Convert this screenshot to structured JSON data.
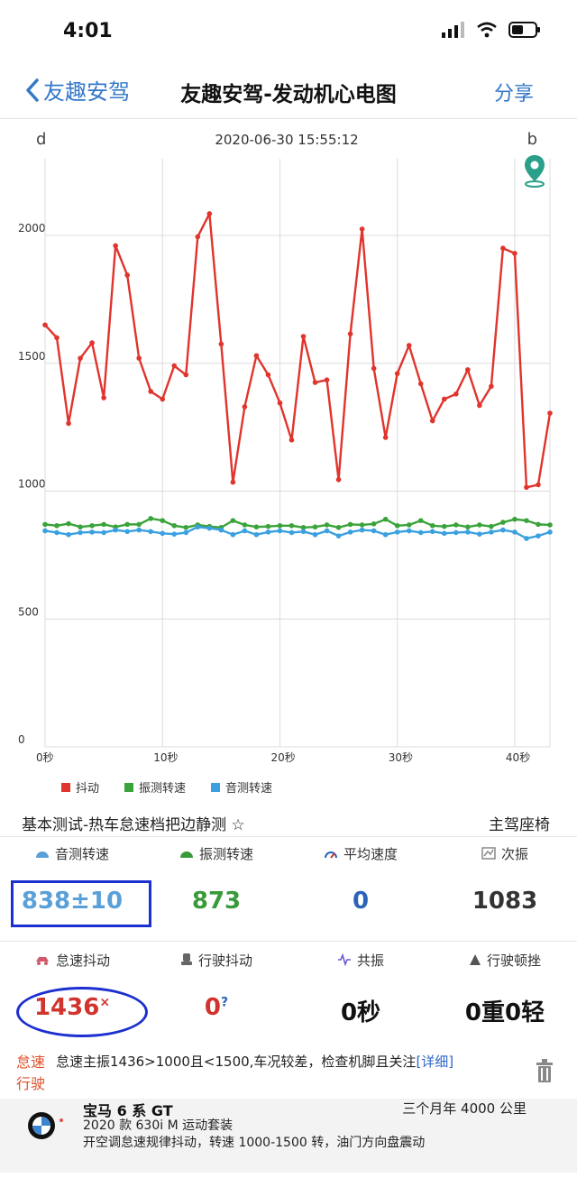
{
  "status": {
    "time": "4:01"
  },
  "nav": {
    "back_label": "友趣安驾",
    "title": "友趣安驾-发动机心电图",
    "share_label": "分享"
  },
  "chart_header": {
    "timestamp": "2020-06-30 15:55:12",
    "left_icon": "d",
    "right_icon": "b"
  },
  "chart_data": {
    "type": "line",
    "x": [
      0,
      1,
      2,
      3,
      4,
      5,
      6,
      7,
      8,
      9,
      10,
      11,
      12,
      13,
      14,
      15,
      16,
      17,
      18,
      19,
      20,
      21,
      22,
      23,
      24,
      25,
      26,
      27,
      28,
      29,
      30,
      31,
      32,
      33,
      34,
      35,
      36,
      37,
      38,
      39,
      40,
      41,
      42,
      43
    ],
    "xlim": [
      0,
      43
    ],
    "ylim": [
      0,
      2300
    ],
    "x_ticks": [
      0,
      10,
      20,
      30,
      40
    ],
    "x_tick_labels": [
      "0秒",
      "10秒",
      "20秒",
      "30秒",
      "40秒"
    ],
    "y_ticks": [
      0,
      500,
      1000,
      1500,
      2000
    ],
    "y_tick_labels": [
      "0",
      "500",
      "1000",
      "1500",
      "2000"
    ],
    "grid": true,
    "legend_position": "bottom-left",
    "series": [
      {
        "name": "抖动",
        "color": "#e0342c",
        "values": [
          1650,
          1600,
          1265,
          1520,
          1580,
          1365,
          1960,
          1845,
          1520,
          1390,
          1360,
          1490,
          1455,
          1995,
          2085,
          1575,
          1035,
          1330,
          1530,
          1455,
          1345,
          1200,
          1605,
          1425,
          1435,
          1045,
          1615,
          2025,
          1480,
          1210,
          1460,
          1570,
          1420,
          1275,
          1360,
          1380,
          1475,
          1335,
          1410,
          1950,
          1930,
          1015,
          1025,
          1305
        ]
      },
      {
        "name": "振测转速",
        "color": "#3aa33a",
        "values": [
          870,
          865,
          873,
          860,
          865,
          870,
          860,
          870,
          870,
          893,
          885,
          865,
          858,
          868,
          862,
          858,
          885,
          868,
          860,
          862,
          865,
          865,
          858,
          860,
          868,
          858,
          870,
          868,
          872,
          890,
          865,
          868,
          885,
          865,
          862,
          868,
          860,
          868,
          862,
          878,
          890,
          885,
          870,
          868
        ]
      },
      {
        "name": "音测转速",
        "color": "#3aa0e0",
        "values": [
          845,
          838,
          830,
          838,
          840,
          838,
          848,
          842,
          848,
          842,
          835,
          832,
          838,
          860,
          855,
          848,
          830,
          845,
          830,
          840,
          845,
          838,
          842,
          830,
          845,
          825,
          840,
          848,
          845,
          830,
          840,
          845,
          838,
          842,
          835,
          838,
          840,
          832,
          840,
          848,
          840,
          815,
          825,
          840
        ]
      }
    ]
  },
  "test_info": {
    "name": "基本测试-热车怠速档把边静测 ☆",
    "position": "主驾座椅"
  },
  "stats_row1": [
    {
      "label": "音测转速",
      "value": "838±10",
      "color": "#5aa0d8",
      "icon": "gauge-icon"
    },
    {
      "label": "振测转速",
      "value": "873",
      "color": "#3a9a3a",
      "icon": "gauge-icon"
    },
    {
      "label": "平均速度",
      "value": "0",
      "color": "#2a63b8",
      "icon": "speed-icon"
    },
    {
      "label": "次振",
      "value": "1083",
      "color": "#333333",
      "icon": "chart-icon"
    }
  ],
  "stats_row2": [
    {
      "label": "怠速抖动",
      "value": "1436",
      "suffix": "×",
      "color": "#d0342c",
      "icon": "car-shake-icon"
    },
    {
      "label": "行驶抖动",
      "value": "0",
      "suffix": "?",
      "color": "#d0342c",
      "icon": "seat-icon"
    },
    {
      "label": "共振",
      "value": "0秒",
      "color": "#111111",
      "icon": "wave-icon"
    },
    {
      "label": "行驶顿挫",
      "value": "0重0轻",
      "color": "#111111",
      "icon": "triangle-icon"
    }
  ],
  "diagnosis": {
    "tag": "怠速 行驶",
    "text": "怠速主振1436>1000且<1500,车况较差，检查机脚且关注",
    "detail_label": "[详细]"
  },
  "car": {
    "name": "宝马 6 系 GT",
    "meta": "三个月年 4000 公里",
    "model": "2020 款 630i M 运动套装",
    "issue": "开空调怠速规律抖动，转速 1000-1500 转，油门方向盘震动"
  }
}
